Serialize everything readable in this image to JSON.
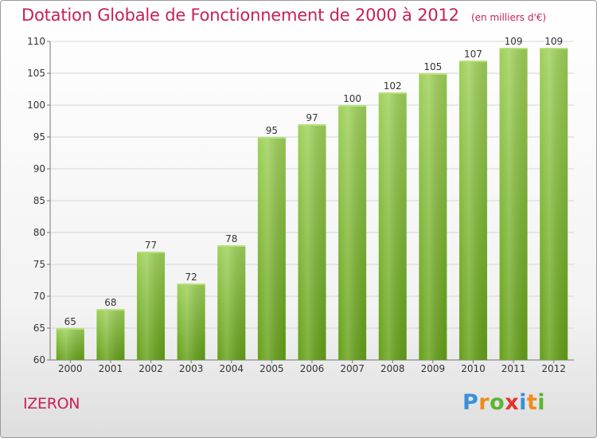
{
  "chart_data": {
    "type": "bar",
    "title": "Dotation Globale de Fonctionnement de 2000 à 2012",
    "subtitle": "(en milliers d'€)",
    "categories": [
      "2000",
      "2001",
      "2002",
      "2003",
      "2004",
      "2005",
      "2006",
      "2007",
      "2008",
      "2009",
      "2010",
      "2011",
      "2012"
    ],
    "values": [
      65,
      68,
      77,
      72,
      78,
      95,
      97,
      100,
      102,
      105,
      107,
      109,
      109
    ],
    "ylim": [
      60,
      110
    ],
    "yticks": [
      60,
      65,
      70,
      75,
      80,
      85,
      90,
      95,
      100,
      105,
      110
    ],
    "grid": true,
    "bar_color_top": "#9fd15a",
    "bar_color_bottom": "#64a018"
  },
  "commune": "IZERON",
  "logo": {
    "text": "Proxiti",
    "letters": [
      {
        "char": "P",
        "color": "#3b8fd9"
      },
      {
        "char": "r",
        "color": "#f28a1c"
      },
      {
        "char": "o",
        "color": "#5bb531"
      },
      {
        "char": "x",
        "color": "#e8322c"
      },
      {
        "char": "i",
        "color": "#3b8fd9"
      },
      {
        "char": "t",
        "color": "#f28a1c"
      },
      {
        "char": "i",
        "color": "#5bb531"
      }
    ]
  },
  "accent_color": "#c8205a"
}
